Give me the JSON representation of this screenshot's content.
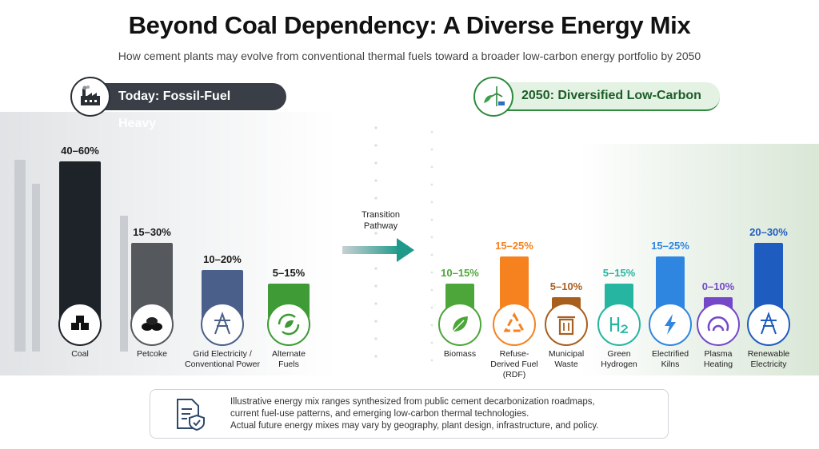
{
  "header": {
    "title": "Beyond Coal Dependency: A Diverse Energy Mix",
    "subtitle": "How cement plants may evolve from conventional thermal fuels toward a broader low-carbon energy portfolio by 2050"
  },
  "left_panel": {
    "label": "Today: Fossil-Fuel Heavy",
    "icon": "factory-icon"
  },
  "right_panel": {
    "label": "2050: Diversified Low-Carbon",
    "icon": "wind-solar-icon"
  },
  "transition": {
    "line1": "Transition",
    "line2": "Pathway",
    "icon": "arrow-right-icon"
  },
  "footer": {
    "icon": "document-shield-icon",
    "lines": [
      "Illustrative energy mix ranges synthesized from public cement decarbonization roadmaps,",
      "current fuel-use patterns, and emerging low-carbon thermal technologies.",
      "Actual future energy mixes may vary by geography, plant design, infrastructure, and policy."
    ]
  },
  "colors": {
    "coal": "#1e2329",
    "petcoke": "#55595e",
    "grid": "#4a5f8a",
    "alternate": "#3e9b35",
    "biomass": "#4da63a",
    "rdf": "#f5821f",
    "municipal": "#a85f1e",
    "hydrogen": "#26b5a0",
    "electrified": "#2f86e0",
    "plasma": "#7448c8",
    "renewable": "#1f5cc0"
  },
  "chart_data": [
    {
      "type": "bar",
      "panel": "today",
      "ylim": [
        0,
        60
      ],
      "categories": [
        {
          "lines": [
            "Coal"
          ],
          "range_label": "40–60%",
          "low": 40,
          "high": 60,
          "icon": "coal-icon",
          "color_key": "coal"
        },
        {
          "lines": [
            "Petcoke"
          ],
          "range_label": "15–30%",
          "low": 15,
          "high": 30,
          "icon": "petcoke-icon",
          "color_key": "petcoke"
        },
        {
          "lines": [
            "Grid Electricity /",
            "Conventional Power"
          ],
          "range_label": "10–20%",
          "low": 10,
          "high": 20,
          "icon": "power-tower-icon",
          "color_key": "grid"
        },
        {
          "lines": [
            "Alternate",
            "Fuels"
          ],
          "range_label": "5–15%",
          "low": 5,
          "high": 15,
          "icon": "recycle-leaf-icon",
          "color_key": "alternate"
        }
      ]
    },
    {
      "type": "bar",
      "panel": "2050",
      "ylim": [
        0,
        60
      ],
      "categories": [
        {
          "lines": [
            "Biomass"
          ],
          "range_label": "10–15%",
          "low": 10,
          "high": 15,
          "icon": "leaf-icon",
          "color_key": "biomass"
        },
        {
          "lines": [
            "Refuse-",
            "Derived Fuel",
            "(RDF)"
          ],
          "range_label": "15–25%",
          "low": 15,
          "high": 25,
          "icon": "recycle-icon",
          "color_key": "rdf"
        },
        {
          "lines": [
            "Municipal",
            "Waste"
          ],
          "range_label": "5–10%",
          "low": 5,
          "high": 10,
          "icon": "trash-icon",
          "color_key": "municipal"
        },
        {
          "lines": [
            "Green",
            "Hydrogen"
          ],
          "range_label": "5–15%",
          "low": 5,
          "high": 15,
          "icon": "h2-icon",
          "color_key": "hydrogen"
        },
        {
          "lines": [
            "Electrified",
            "Kilns"
          ],
          "range_label": "15–25%",
          "low": 15,
          "high": 25,
          "icon": "lightning-icon",
          "color_key": "electrified"
        },
        {
          "lines": [
            "Plasma",
            "Heating"
          ],
          "range_label": "0–10%",
          "low": 0,
          "high": 10,
          "icon": "plasma-icon",
          "color_key": "plasma"
        },
        {
          "lines": [
            "Renewable",
            "Electricity"
          ],
          "range_label": "20–30%",
          "low": 20,
          "high": 30,
          "icon": "power-tower-icon",
          "color_key": "renewable"
        }
      ]
    }
  ]
}
